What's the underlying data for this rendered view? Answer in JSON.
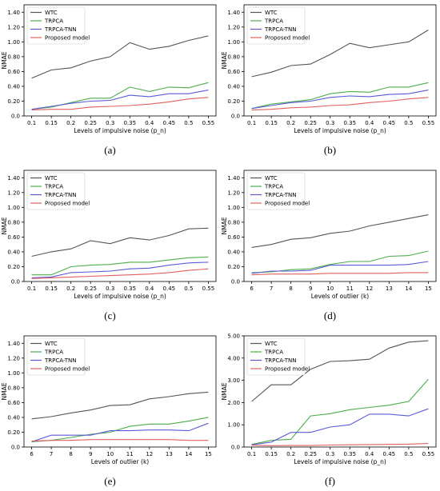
{
  "legend_names": [
    "WTC",
    "TRPCA",
    "TRPCA-TNN",
    "Proposed model"
  ],
  "colors": {
    "WTC": "#555555",
    "TRPCA": "#4cae4c",
    "TRPCA-TNN": "#5a5ad6",
    "Proposed": "#e06060"
  },
  "chart_data": [
    {
      "panel": "(a)",
      "type": "line",
      "ylabel": "NMAE",
      "xlabel": "Levels of impulsive noise (p_n)",
      "categories": [
        "0.1",
        "0.15",
        "0.2",
        "0.25",
        "0.3",
        "0.35",
        "0.4",
        "0.45",
        "0.5",
        "0.55"
      ],
      "yticks": [
        "0.0",
        "0.20",
        "0.40",
        "0.60",
        "0.80",
        "1.00",
        "1.20",
        "1.40"
      ],
      "ylim": [
        0,
        1.5
      ],
      "series": [
        {
          "name": "WTC",
          "values": [
            0.51,
            0.62,
            0.65,
            0.74,
            0.8,
            0.99,
            0.9,
            0.94,
            1.02,
            1.08
          ]
        },
        {
          "name": "TRPCA",
          "values": [
            0.09,
            0.12,
            0.18,
            0.24,
            0.24,
            0.39,
            0.33,
            0.39,
            0.38,
            0.45
          ]
        },
        {
          "name": "TRPCA-TNN",
          "values": [
            0.09,
            0.13,
            0.17,
            0.2,
            0.21,
            0.28,
            0.26,
            0.3,
            0.3,
            0.35
          ]
        },
        {
          "name": "Proposed model",
          "values": [
            0.08,
            0.09,
            0.09,
            0.12,
            0.13,
            0.14,
            0.16,
            0.19,
            0.23,
            0.25
          ]
        }
      ]
    },
    {
      "panel": "(b)",
      "type": "line",
      "ylabel": "NMAE",
      "xlabel": "Levels of impulsive noise (p_n)",
      "categories": [
        "0.1",
        "0.15",
        "0.2",
        "0.25",
        "0.3",
        "0.35",
        "0.4",
        "0.45",
        "0.5",
        "0.55"
      ],
      "yticks": [
        "0.0",
        "0.20",
        "0.40",
        "0.60",
        "0.80",
        "1.00",
        "1.20",
        "1.40"
      ],
      "ylim": [
        0,
        1.5
      ],
      "series": [
        {
          "name": "WTC",
          "values": [
            0.53,
            0.59,
            0.68,
            0.7,
            0.83,
            0.98,
            0.92,
            0.96,
            1.0,
            1.16
          ]
        },
        {
          "name": "TRPCA",
          "values": [
            0.1,
            0.16,
            0.19,
            0.22,
            0.3,
            0.33,
            0.32,
            0.39,
            0.39,
            0.45
          ]
        },
        {
          "name": "TRPCA-TNN",
          "values": [
            0.1,
            0.14,
            0.18,
            0.2,
            0.25,
            0.27,
            0.26,
            0.29,
            0.3,
            0.35
          ]
        },
        {
          "name": "Proposed model",
          "values": [
            0.08,
            0.09,
            0.11,
            0.12,
            0.14,
            0.15,
            0.18,
            0.2,
            0.23,
            0.25
          ]
        }
      ]
    },
    {
      "panel": "(c)",
      "type": "line",
      "ylabel": "NMAE",
      "xlabel": "Levels of impulsive noise (p_n)",
      "categories": [
        "0.1",
        "0.15",
        "0.2",
        "0.25",
        "0.3",
        "0.35",
        "0.4",
        "0.45",
        "0.5",
        "0.55"
      ],
      "yticks": [
        "0.0",
        "0.20",
        "0.40",
        "0.60",
        "0.80",
        "1.00",
        "1.20",
        "1.40"
      ],
      "ylim": [
        0,
        1.5
      ],
      "series": [
        {
          "name": "WTC",
          "values": [
            0.34,
            0.4,
            0.44,
            0.55,
            0.51,
            0.59,
            0.56,
            0.62,
            0.71,
            0.72
          ]
        },
        {
          "name": "TRPCA",
          "values": [
            0.09,
            0.09,
            0.2,
            0.22,
            0.23,
            0.26,
            0.26,
            0.29,
            0.32,
            0.33
          ]
        },
        {
          "name": "TRPCA-TNN",
          "values": [
            0.05,
            0.06,
            0.12,
            0.13,
            0.14,
            0.17,
            0.18,
            0.22,
            0.25,
            0.26
          ]
        },
        {
          "name": "Proposed model",
          "values": [
            0.04,
            0.05,
            0.06,
            0.07,
            0.08,
            0.09,
            0.1,
            0.12,
            0.15,
            0.17
          ]
        }
      ]
    },
    {
      "panel": "(d)",
      "type": "line",
      "ylabel": "NMAE",
      "xlabel": "Levels of outlier (k)",
      "categories": [
        "6",
        "7",
        "8",
        "9",
        "10",
        "11",
        "12",
        "13",
        "14",
        "15"
      ],
      "yticks": [
        "0.0",
        "0.20",
        "0.40",
        "0.60",
        "0.80",
        "1.00",
        "1.20",
        "1.40"
      ],
      "ylim": [
        0,
        1.5
      ],
      "series": [
        {
          "name": "WTC",
          "values": [
            0.46,
            0.5,
            0.57,
            0.59,
            0.65,
            0.68,
            0.75,
            0.8,
            0.85,
            0.9
          ]
        },
        {
          "name": "TRPCA",
          "values": [
            0.12,
            0.13,
            0.16,
            0.17,
            0.23,
            0.27,
            0.27,
            0.34,
            0.35,
            0.41
          ]
        },
        {
          "name": "TRPCA-TNN",
          "values": [
            0.11,
            0.14,
            0.14,
            0.15,
            0.22,
            0.22,
            0.22,
            0.22,
            0.23,
            0.27
          ]
        },
        {
          "name": "Proposed model",
          "values": [
            0.09,
            0.1,
            0.1,
            0.1,
            0.11,
            0.11,
            0.11,
            0.11,
            0.12,
            0.12
          ]
        }
      ]
    },
    {
      "panel": "(e)",
      "type": "line",
      "ylabel": "NMAE",
      "xlabel": "Levels of outlier (k)",
      "categories": [
        "6",
        "7",
        "8",
        "9",
        "10",
        "11",
        "12",
        "13",
        "14",
        "15"
      ],
      "yticks": [
        "0.0",
        "0.20",
        "0.40",
        "0.60",
        "0.80",
        "1.00",
        "1.20",
        "1.40"
      ],
      "ylim": [
        0,
        1.5
      ],
      "series": [
        {
          "name": "WTC",
          "values": [
            0.38,
            0.41,
            0.46,
            0.5,
            0.56,
            0.57,
            0.65,
            0.68,
            0.72,
            0.74
          ]
        },
        {
          "name": "TRPCA",
          "values": [
            0.07,
            0.09,
            0.13,
            0.17,
            0.2,
            0.28,
            0.31,
            0.31,
            0.35,
            0.4
          ]
        },
        {
          "name": "TRPCA-TNN",
          "values": [
            0.07,
            0.16,
            0.16,
            0.16,
            0.22,
            0.22,
            0.23,
            0.23,
            0.22,
            0.32
          ]
        },
        {
          "name": "Proposed model",
          "values": [
            0.08,
            0.09,
            0.09,
            0.1,
            0.1,
            0.1,
            0.1,
            0.1,
            0.09,
            0.09
          ]
        }
      ]
    },
    {
      "panel": "(f)",
      "type": "line",
      "ylabel": "NMAE",
      "xlabel": "Levels of impulsive noise (p_n)",
      "categories": [
        "0.1",
        "0.15",
        "0.2",
        "0.25",
        "0.3",
        "0.35",
        "0.4",
        "0.45",
        "0.5",
        "0.55"
      ],
      "yticks": [
        "0.0",
        "1.00",
        "2.00",
        "3.00",
        "4.00",
        "5.00"
      ],
      "ylim": [
        0,
        5.0
      ],
      "series": [
        {
          "name": "WTC",
          "values": [
            2.05,
            2.8,
            2.8,
            3.5,
            3.85,
            3.88,
            3.95,
            4.45,
            4.72,
            4.78
          ]
        },
        {
          "name": "TRPCA",
          "values": [
            0.12,
            0.3,
            0.35,
            1.4,
            1.5,
            1.68,
            1.78,
            1.88,
            2.05,
            3.05
          ]
        },
        {
          "name": "TRPCA-TNN",
          "values": [
            0.1,
            0.22,
            0.66,
            0.66,
            0.9,
            1.0,
            1.48,
            1.48,
            1.4,
            1.72
          ]
        },
        {
          "name": "Proposed model",
          "values": [
            0.08,
            0.06,
            0.07,
            0.07,
            0.09,
            0.1,
            0.11,
            0.12,
            0.13,
            0.16
          ]
        }
      ]
    }
  ]
}
